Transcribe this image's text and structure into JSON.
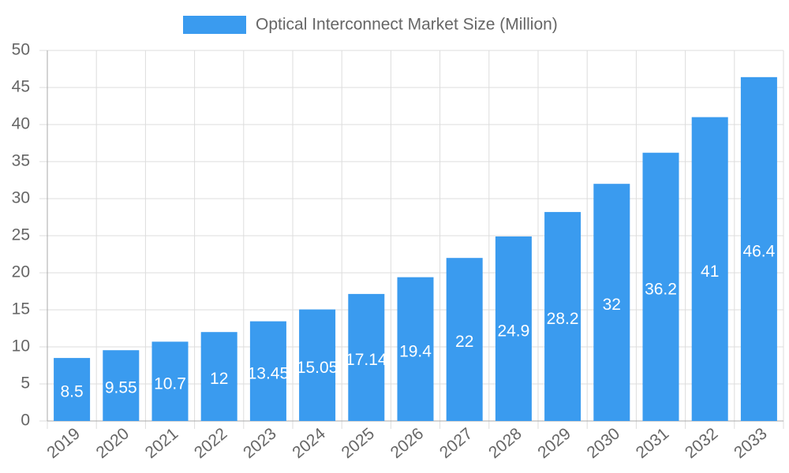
{
  "chart_data": {
    "type": "bar",
    "series_name": "Optical Interconnect Market Size (Million)",
    "categories": [
      "2019",
      "2020",
      "2021",
      "2022",
      "2023",
      "2024",
      "2025",
      "2026",
      "2027",
      "2028",
      "2029",
      "2030",
      "2031",
      "2032",
      "2033"
    ],
    "values": [
      8.5,
      9.55,
      10.7,
      12,
      13.45,
      15.05,
      17.14,
      19.4,
      22,
      24.9,
      28.2,
      32,
      36.2,
      41,
      46.4
    ],
    "color": "#3a9bef",
    "ylim": [
      0,
      50
    ],
    "yticks": [
      0,
      5,
      10,
      15,
      20,
      25,
      30,
      35,
      40,
      45,
      50
    ],
    "grid": true
  }
}
